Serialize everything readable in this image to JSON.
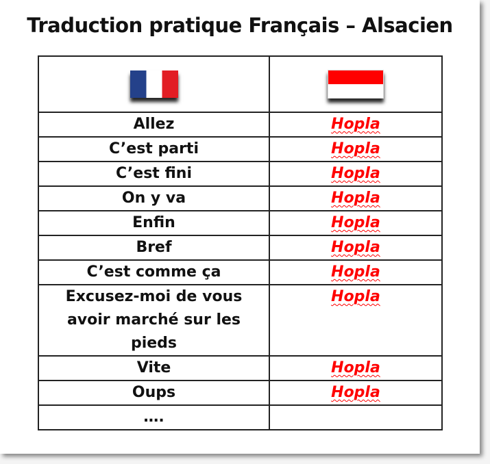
{
  "title": "Traduction pratique Français – Alsacien",
  "header": {
    "left_flag": "france-flag-icon",
    "right_flag": "alsace-flag-icon"
  },
  "colors": {
    "translation": "#ff0000",
    "france_blue": "#24418a",
    "france_red": "#e21d24",
    "alsace_red": "#ff0000"
  },
  "rows": [
    {
      "fr": "Allez",
      "als": "Hopla"
    },
    {
      "fr": "C’est parti",
      "als": "Hopla"
    },
    {
      "fr": "C’est fini",
      "als": "Hopla"
    },
    {
      "fr": "On y va",
      "als": "Hopla"
    },
    {
      "fr": "Enfin",
      "als": "Hopla"
    },
    {
      "fr": "Bref",
      "als": "Hopla"
    },
    {
      "fr": "C’est comme ça",
      "als": "Hopla"
    },
    {
      "fr": "Excusez-moi de vous avoir marché sur les pieds",
      "als": "Hopla"
    },
    {
      "fr": "Vite",
      "als": "Hopla"
    },
    {
      "fr": "Oups",
      "als": "Hopla"
    },
    {
      "fr": "….",
      "als": ""
    }
  ]
}
